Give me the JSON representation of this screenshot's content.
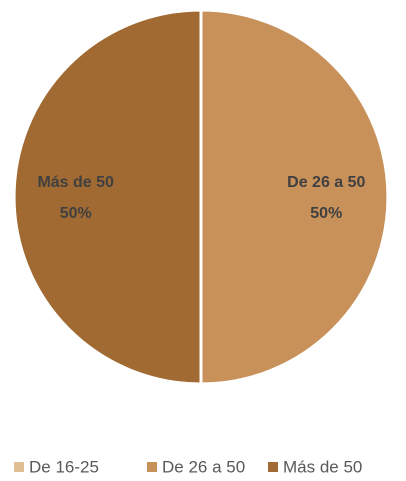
{
  "chart_data": {
    "type": "pie",
    "categories": [
      "De 16-25",
      "De 26 a 50",
      "Más de 50"
    ],
    "values": [
      0,
      50,
      50
    ],
    "value_labels": [
      null,
      "50%",
      "50%"
    ],
    "colors": [
      "#dfc095",
      "#c8915a",
      "#a06a32"
    ],
    "legend": "bottom"
  }
}
